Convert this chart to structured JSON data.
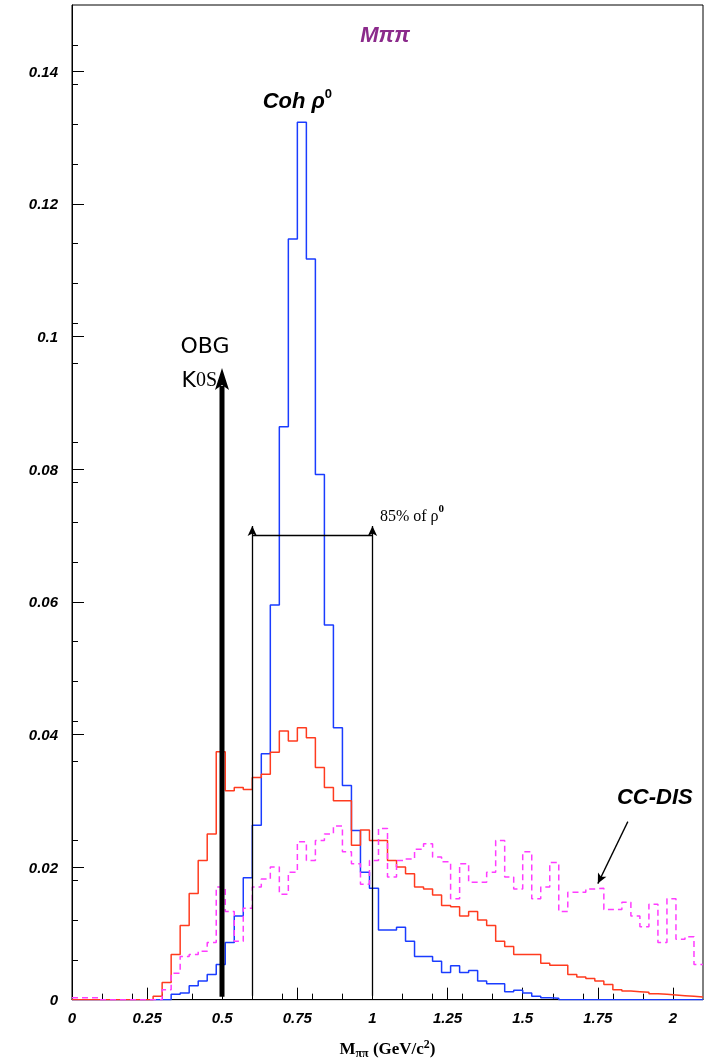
{
  "chart_data": {
    "type": "histogram",
    "title": "Mππ",
    "xlabel": "M$_{ππ}$ (GeV/c$^{2}$)",
    "bins": [
      0,
      0.03,
      0.06,
      0.09,
      0.12,
      0.15,
      0.18,
      0.21,
      0.24,
      0.27,
      0.3,
      0.33,
      0.36,
      0.39,
      0.42,
      0.45,
      0.48,
      0.51,
      0.54,
      0.57,
      0.6,
      0.63,
      0.66,
      0.69,
      0.72,
      0.75,
      0.78,
      0.81,
      0.84,
      0.87,
      0.9,
      0.93,
      0.96,
      0.99,
      1.02,
      1.05,
      1.08,
      1.11,
      1.14,
      1.17,
      1.2,
      1.23,
      1.26,
      1.29,
      1.32,
      1.35,
      1.38,
      1.41,
      1.44,
      1.47,
      1.5,
      1.53,
      1.56,
      1.59,
      1.62,
      1.65,
      1.68,
      1.71,
      1.74,
      1.77,
      1.8,
      1.83,
      1.86,
      1.89,
      1.92,
      1.95,
      1.98,
      2.01,
      2.04,
      2.07,
      2.1
    ],
    "series": [
      {
        "color": "#1a3cff",
        "values": [
          0,
          0,
          0,
          0,
          0,
          0,
          0,
          0,
          0,
          0,
          0,
          0.0008,
          0.001,
          0.0021,
          0.0028,
          0.0038,
          0.0053,
          0.0086,
          0.0126,
          0.0184,
          0.0263,
          0.0371,
          0.0595,
          0.0864,
          0.1147,
          0.1323,
          0.1117,
          0.0792,
          0.0565,
          0.041,
          0.0323,
          0.0255,
          0.0192,
          0.0168,
          0.0105,
          0.0105,
          0.0109,
          0.0088,
          0.0065,
          0.0065,
          0.0058,
          0.0041,
          0.0051,
          0.0041,
          0.0044,
          0.0028,
          0.0024,
          0.0024,
          0.0012,
          0.0014,
          0.001,
          0.0005,
          0.0003,
          0.0002,
          0,
          0,
          0,
          0,
          0,
          0,
          0,
          0,
          0,
          0,
          0,
          0,
          0,
          0,
          0,
          0
        ]
      },
      {
        "color": "#ff3b1f",
        "values": [
          0,
          0,
          0,
          0,
          0,
          0,
          0,
          0,
          0,
          0.0005,
          0.0026,
          0.0068,
          0.0112,
          0.016,
          0.021,
          0.025,
          0.0374,
          0.0315,
          0.032,
          0.0317,
          0.0335,
          0.034,
          0.0373,
          0.0405,
          0.039,
          0.041,
          0.0395,
          0.035,
          0.032,
          0.03,
          0.03,
          0.0233,
          0.0256,
          0.024,
          0.024,
          0.021,
          0.02,
          0.019,
          0.017,
          0.0167,
          0.0158,
          0.0142,
          0.014,
          0.0126,
          0.0133,
          0.012,
          0.0112,
          0.0088,
          0.008,
          0.0068,
          0.0068,
          0.0068,
          0.0055,
          0.0052,
          0.0052,
          0.0038,
          0.0034,
          0.0032,
          0.0028,
          0.0023,
          0.0015,
          0.0013,
          0.0012,
          0.0011,
          0.0009,
          0.0008,
          0.0007,
          0.0006,
          0.0005,
          0.0004
        ]
      },
      {
        "color": "#ff3cff",
        "line_style": "dashed",
        "values": [
          0.0003,
          0.0003,
          0.0003,
          0,
          0,
          0,
          0,
          0,
          0,
          0,
          0.0015,
          0.004,
          0.0065,
          0.0068,
          0.0073,
          0.0086,
          0.017,
          0.0133,
          0.0088,
          0.0138,
          0.017,
          0.0182,
          0.02,
          0.0159,
          0.0192,
          0.0238,
          0.021,
          0.024,
          0.025,
          0.0262,
          0.0223,
          0.0205,
          0.0174,
          0.021,
          0.0258,
          0.0185,
          0.021,
          0.0212,
          0.0227,
          0.0235,
          0.0215,
          0.0208,
          0.0152,
          0.0205,
          0.0177,
          0.0177,
          0.0192,
          0.024,
          0.0185,
          0.0167,
          0.0223,
          0.0152,
          0.017,
          0.0207,
          0.0133,
          0.0162,
          0.0162,
          0.0167,
          0.0168,
          0.0136,
          0.0136,
          0.0147,
          0.0126,
          0.011,
          0.0144,
          0.0086,
          0.0152,
          0.0091,
          0.0095,
          0.0053
        ]
      }
    ],
    "xlim": [
      0,
      2.1
    ],
    "xticks": [
      0,
      0.25,
      0.5,
      0.75,
      1,
      1.25,
      1.5,
      1.75,
      2
    ],
    "ylim": [
      0,
      0.15
    ],
    "yticks": [
      0,
      0.02,
      0.04,
      0.06,
      0.08,
      0.1,
      0.12,
      0.14
    ],
    "grid": false,
    "ref_lines": [
      {
        "axis": "x",
        "value": 0.5,
        "label": "K0S",
        "color": "#000000"
      },
      {
        "axis": "x",
        "value": 0.6,
        "label": null
      },
      {
        "axis": "x",
        "value": 1.0,
        "label": null
      }
    ],
    "annotations": [
      {
        "text": "Coh ρ$^{0}$",
        "x": 0.75,
        "y": 0.1323
      },
      "OBG",
      "85% of ρ$^{0}$",
      {
        "text": "CC-DIS",
        "x": 1.75,
        "y": 0.0175
      }
    ]
  }
}
